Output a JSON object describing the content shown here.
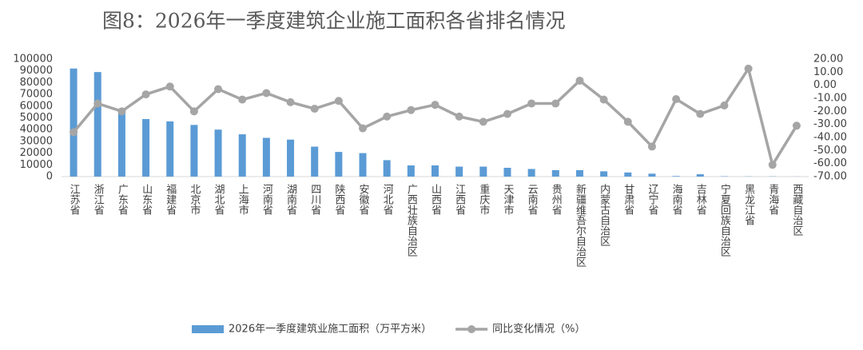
{
  "chart_data": {
    "type": "bar",
    "title": "图8：2026年一季度建筑企业施工面积各省排名情况",
    "categories": [
      "江苏省",
      "浙江省",
      "广东省",
      "山东省",
      "福建省",
      "北京市",
      "湖北省",
      "上海市",
      "河南省",
      "湖南省",
      "四川省",
      "陕西省",
      "安徽省",
      "河北省",
      "广西壮族自治区",
      "山西省",
      "江西省",
      "重庆市",
      "天津市",
      "云南省",
      "贵州省",
      "新疆维吾尔自治区",
      "内蒙古自治区",
      "甘肃省",
      "辽宁省",
      "海南省",
      "吉林省",
      "宁夏回族自治区",
      "黑龙江省",
      "青海省",
      "西藏自治区"
    ],
    "series": [
      {
        "name": "2026年一季度建筑业施工面积（万平方米）",
        "type": "bar",
        "color": "#5b9bd5",
        "values": [
          92000,
          89000,
          57000,
          49000,
          47000,
          44000,
          40000,
          36000,
          33000,
          31500,
          25500,
          21000,
          20000,
          14000,
          9500,
          9500,
          8500,
          8500,
          7500,
          6500,
          5500,
          5500,
          4500,
          3500,
          2500,
          500,
          2000,
          300,
          200,
          200,
          100
        ]
      },
      {
        "name": "同比变化情况（%）",
        "type": "line",
        "axis": "y2",
        "color": "#a5a5a5",
        "values": [
          -36,
          -14,
          -20,
          -7,
          -1,
          -20,
          -3,
          -11,
          -6,
          -13,
          -18,
          -12,
          -33,
          -24,
          -19,
          -15,
          -24,
          -28,
          -22,
          -14,
          -14,
          3.5,
          -11,
          -28,
          -47,
          -10.6,
          -22,
          -15.5,
          12.7,
          -61,
          -31
        ]
      }
    ],
    "ylim": [
      0,
      100000
    ],
    "yticks": [
      0,
      10000,
      20000,
      30000,
      40000,
      50000,
      60000,
      70000,
      80000,
      90000,
      100000
    ],
    "y2lim": [
      -70,
      20
    ],
    "y2ticks": [
      {
        "value": -70,
        "label": "-70.00"
      },
      {
        "value": -60,
        "label": "-60.00"
      },
      {
        "value": -50,
        "label": "-50.00"
      },
      {
        "value": -40,
        "label": "-40.00"
      },
      {
        "value": -30,
        "label": "-30.00"
      },
      {
        "value": -20,
        "label": "-20.00"
      },
      {
        "value": -10,
        "label": "-10.00"
      },
      {
        "value": 0,
        "label": "0.00"
      },
      {
        "value": 10,
        "label": "10.00"
      },
      {
        "value": 20,
        "label": "20.00"
      }
    ],
    "legend": "bottom"
  }
}
